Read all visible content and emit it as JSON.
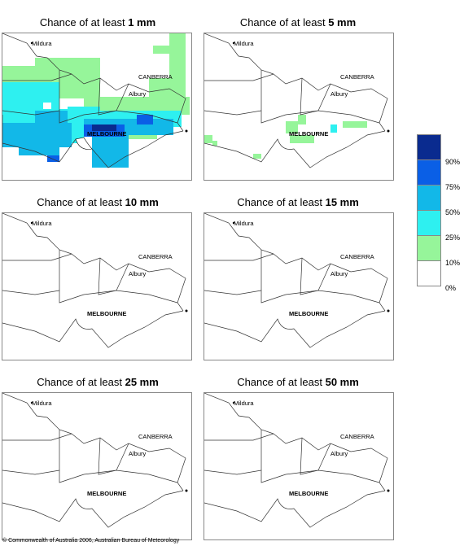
{
  "panels": [
    {
      "title_prefix": "Chance of at least ",
      "threshold": "1 mm"
    },
    {
      "title_prefix": "Chance of at least ",
      "threshold": "5 mm"
    },
    {
      "title_prefix": "Chance of at least ",
      "threshold": "10 mm"
    },
    {
      "title_prefix": "Chance of at least ",
      "threshold": "15 mm"
    },
    {
      "title_prefix": "Chance of at least ",
      "threshold": "25 mm"
    },
    {
      "title_prefix": "Chance of at least ",
      "threshold": "50 mm"
    }
  ],
  "places": {
    "mildura": "Mildura",
    "canberra": "CANBERRA",
    "albury": "Albury",
    "melbourne": "MELBOURNE"
  },
  "legend": {
    "labels": [
      "90%",
      "75%",
      "50%",
      "25%",
      "10%",
      "0%"
    ],
    "colors": [
      "#0a2b8f",
      "#0a5fe6",
      "#12b8e8",
      "#2ef0f0",
      "#96f59a",
      "#ffffff"
    ]
  },
  "copyright": "© Commonwealth of Australia 2006, Australian Bureau of Meteorology"
}
